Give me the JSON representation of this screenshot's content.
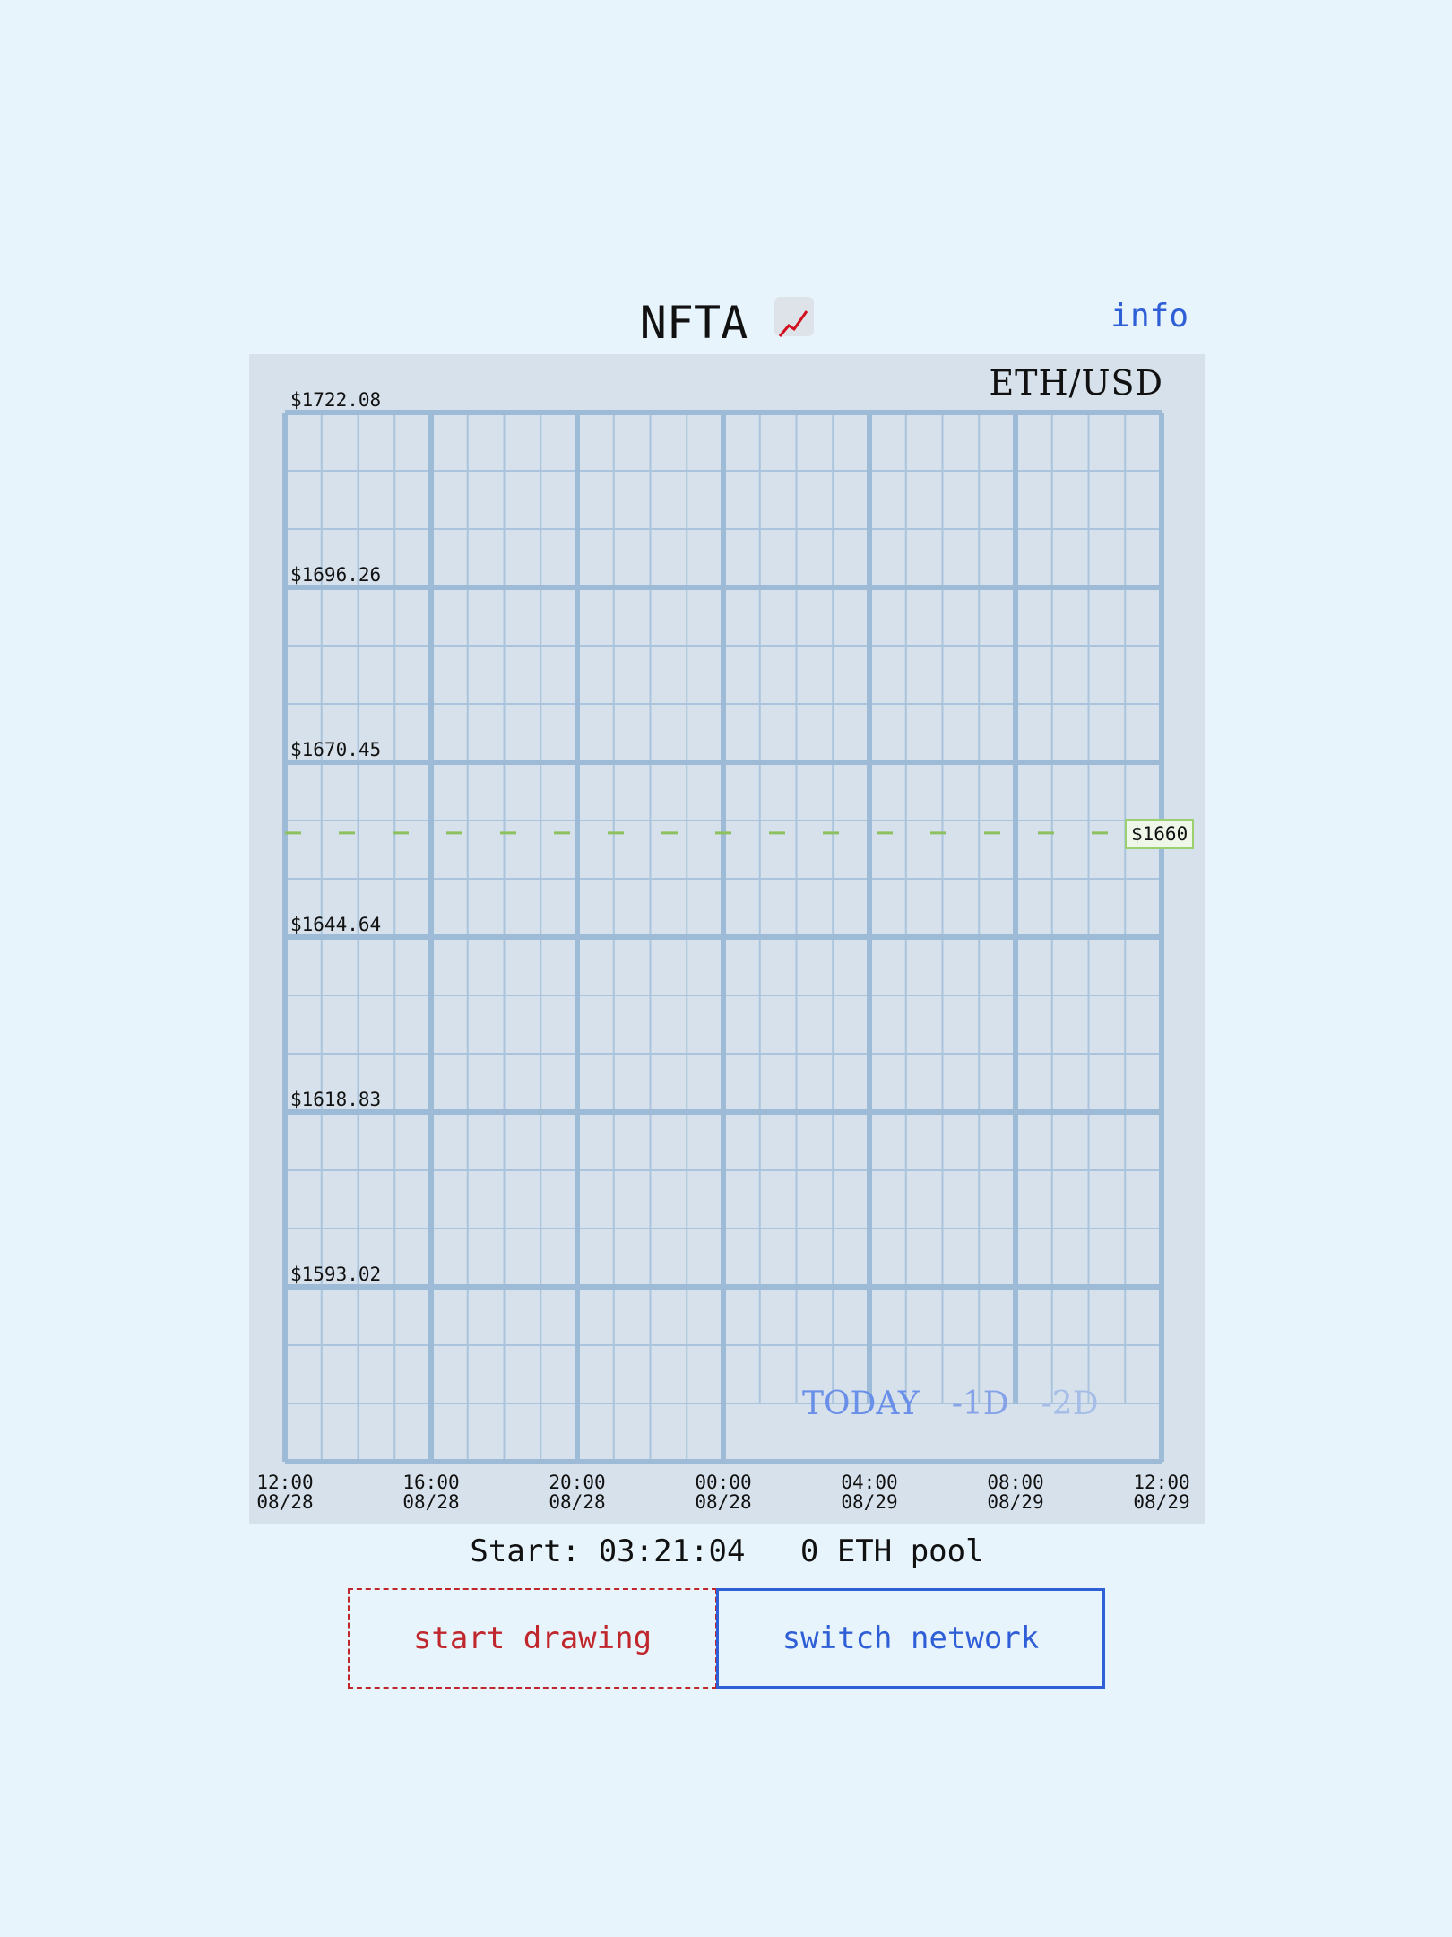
{
  "header": {
    "title": "NFTA",
    "title_icon": "chart-increasing-icon",
    "info_link": "info"
  },
  "chart": {
    "pair": "ETH/USD",
    "current_price_label": "$1660",
    "current_price": 1660,
    "range_tabs": [
      "TODAY",
      "-1D",
      "-2D"
    ],
    "active_range": "TODAY"
  },
  "chart_data": {
    "type": "line",
    "title": "ETH/USD",
    "y_tick_labels": [
      "$1722.08",
      "$1696.26",
      "$1670.45",
      "$1644.64",
      "$1618.83",
      "$1593.02"
    ],
    "x_tick_labels": [
      [
        "12:00",
        "08/28"
      ],
      [
        "16:00",
        "08/28"
      ],
      [
        "20:00",
        "08/28"
      ],
      [
        "00:00",
        "08/28"
      ],
      [
        "04:00",
        "08/29"
      ],
      [
        "08:00",
        "08/29"
      ],
      [
        "12:00",
        "08/29"
      ]
    ],
    "reference_line": {
      "value": 1660,
      "label": "$1660",
      "style": "dashed",
      "color": "#8dc05e"
    },
    "series": [],
    "grid": true
  },
  "status": {
    "start_text": "Start: 03:21:04",
    "pool_text": "0 ETH pool"
  },
  "buttons": {
    "start_drawing": "start drawing",
    "switch_network": "switch network"
  },
  "colors": {
    "background": "#e8f4fb",
    "panel": "#d6e1eb",
    "grid_major": "#9dbbd6",
    "grid_minor": "#a9c4dc",
    "accent_blue": "#2f5fd6",
    "accent_red": "#c0272d",
    "reference_green": "#8dc05e"
  }
}
